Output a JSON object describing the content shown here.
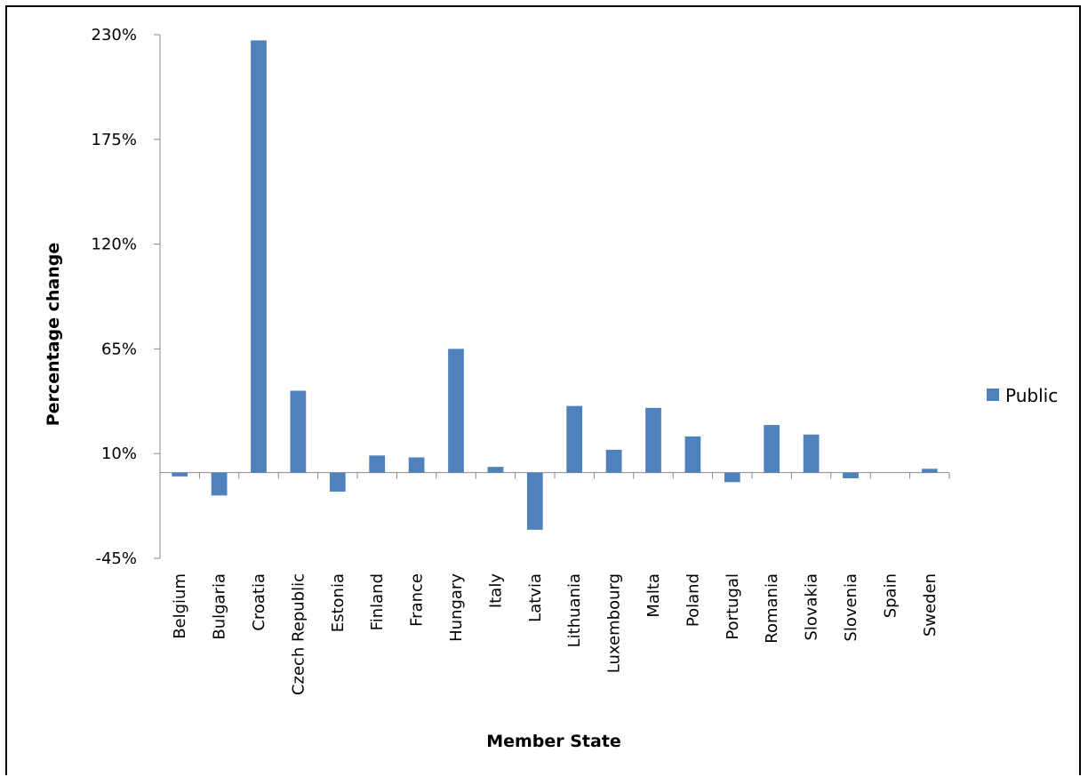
{
  "chart_data": {
    "type": "bar",
    "title": "",
    "xlabel": "Member State",
    "ylabel": "Percentage change",
    "ylim": [
      -45,
      230
    ],
    "yticks": [
      -45,
      10,
      65,
      120,
      175,
      230
    ],
    "ytick_labels": [
      "-45%",
      "10%",
      "65%",
      "120%",
      "175%",
      "230%"
    ],
    "grid": false,
    "legend_position": "right",
    "categories": [
      "Belgium",
      "Bulgaria",
      "Croatia",
      "Czech Republic",
      "Estonia",
      "Finland",
      "France",
      "Hungary",
      "Italy",
      "Latvia",
      "Lithuania",
      "Luxembourg",
      "Malta",
      "Poland",
      "Portugal",
      "Romania",
      "Slovakia",
      "Slovenia",
      "Spain",
      "Sweden"
    ],
    "series": [
      {
        "name": "Public",
        "color": "#4F81BD",
        "values": [
          -2,
          -12,
          227,
          43,
          -10,
          9,
          8,
          65,
          3,
          -30,
          35,
          12,
          34,
          19,
          -5,
          25,
          20,
          -3,
          0,
          2
        ]
      }
    ]
  }
}
